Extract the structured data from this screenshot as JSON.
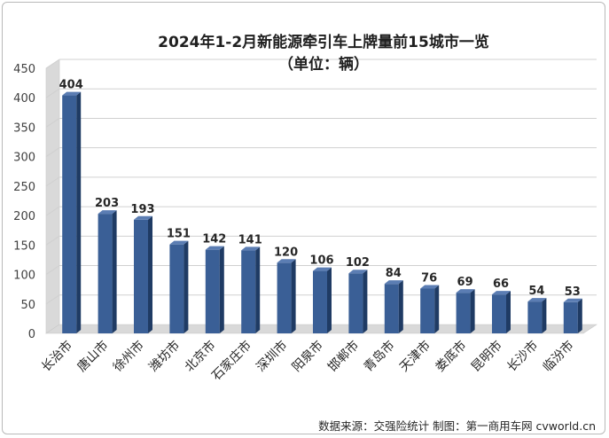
{
  "chart_data": {
    "type": "bar",
    "title": "2024年1-2月新能源牵引车上牌量前15城市一览",
    "subtitle": "（单位：辆）",
    "categories": [
      "长治市",
      "唐山市",
      "徐州市",
      "潍坊市",
      "北京市",
      "石家庄市",
      "深圳市",
      "阳泉市",
      "邯郸市",
      "青岛市",
      "天津市",
      "娄底市",
      "昆明市",
      "长沙市",
      "临汾市"
    ],
    "values": [
      404,
      203,
      193,
      151,
      142,
      141,
      120,
      106,
      102,
      84,
      76,
      69,
      66,
      54,
      53
    ],
    "ylim": [
      0,
      450
    ],
    "yticks": [
      0,
      50,
      100,
      150,
      200,
      250,
      300,
      350,
      400,
      450
    ],
    "grid": true,
    "legend": "none",
    "bar_color": "#3a5f96",
    "source_note": "数据来源：交强险统计  制图：第一商用车网 cvworld.cn"
  }
}
